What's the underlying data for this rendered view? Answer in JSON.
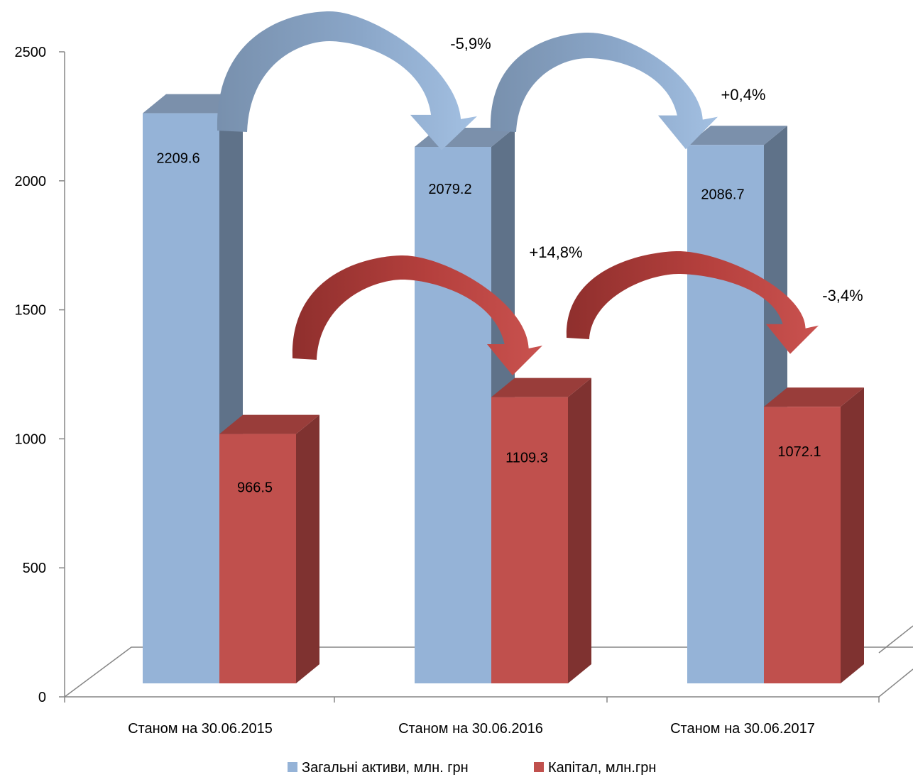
{
  "chart_data": {
    "type": "bar",
    "title": "",
    "xlabel": "",
    "ylabel": "",
    "ylim": [
      0,
      2500
    ],
    "y_ticks": [
      "0",
      "500",
      "1000",
      "1500",
      "2000",
      "2500"
    ],
    "categories": [
      "Станом на 30.06.2015",
      "Станом на 30.06.2016",
      "Станом на 30.06.2017"
    ],
    "series": [
      {
        "name": "Загальні активи, млн. грн",
        "values": [
          2209.6,
          2079.2,
          2086.7
        ],
        "labels": [
          "2209.6",
          "2079.2",
          "2086.7"
        ],
        "color": "#95b3d7",
        "side_color": "#5f7289",
        "top_color": "#7b90ab"
      },
      {
        "name": "Капітал, млн.грн",
        "values": [
          966.5,
          1109.3,
          1072.1
        ],
        "labels": [
          "966.5",
          "1109.3",
          "1072.1"
        ],
        "color": "#c0504d",
        "side_color": "#7f3230",
        "top_color": "#993d3a"
      }
    ],
    "annotations": [
      {
        "series": 0,
        "from": 0,
        "to": 1,
        "text": "-5,9%"
      },
      {
        "series": 0,
        "from": 1,
        "to": 2,
        "text": "+0,4%"
      },
      {
        "series": 1,
        "from": 0,
        "to": 1,
        "text": "+14,8%"
      },
      {
        "series": 1,
        "from": 1,
        "to": 2,
        "text": "-3,4%"
      }
    ],
    "legend_position": "bottom",
    "grid": false,
    "three_d": true
  }
}
